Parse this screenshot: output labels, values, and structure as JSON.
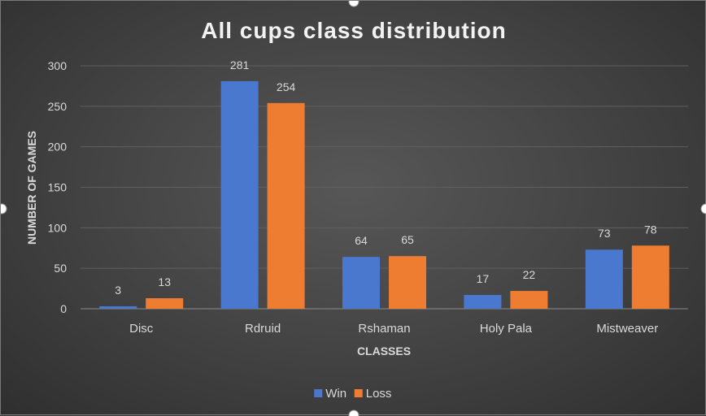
{
  "chart_data": {
    "type": "bar",
    "title": "All cups class distribution",
    "xlabel": "CLASSES",
    "ylabel": "NUMBER OF GAMES",
    "categories": [
      "Disc",
      "Rdruid",
      "Rshaman",
      "Holy Pala",
      "Mistweaver"
    ],
    "series": [
      {
        "name": "Win",
        "values": [
          3,
          281,
          64,
          17,
          73
        ],
        "color": "#4a78cf"
      },
      {
        "name": "Loss",
        "values": [
          13,
          254,
          65,
          22,
          78
        ],
        "color": "#ee7d31"
      }
    ],
    "ylim": [
      0,
      300
    ],
    "yticks": [
      0,
      50,
      100,
      150,
      200,
      250,
      300
    ],
    "grid": true,
    "legend_position": "bottom"
  }
}
